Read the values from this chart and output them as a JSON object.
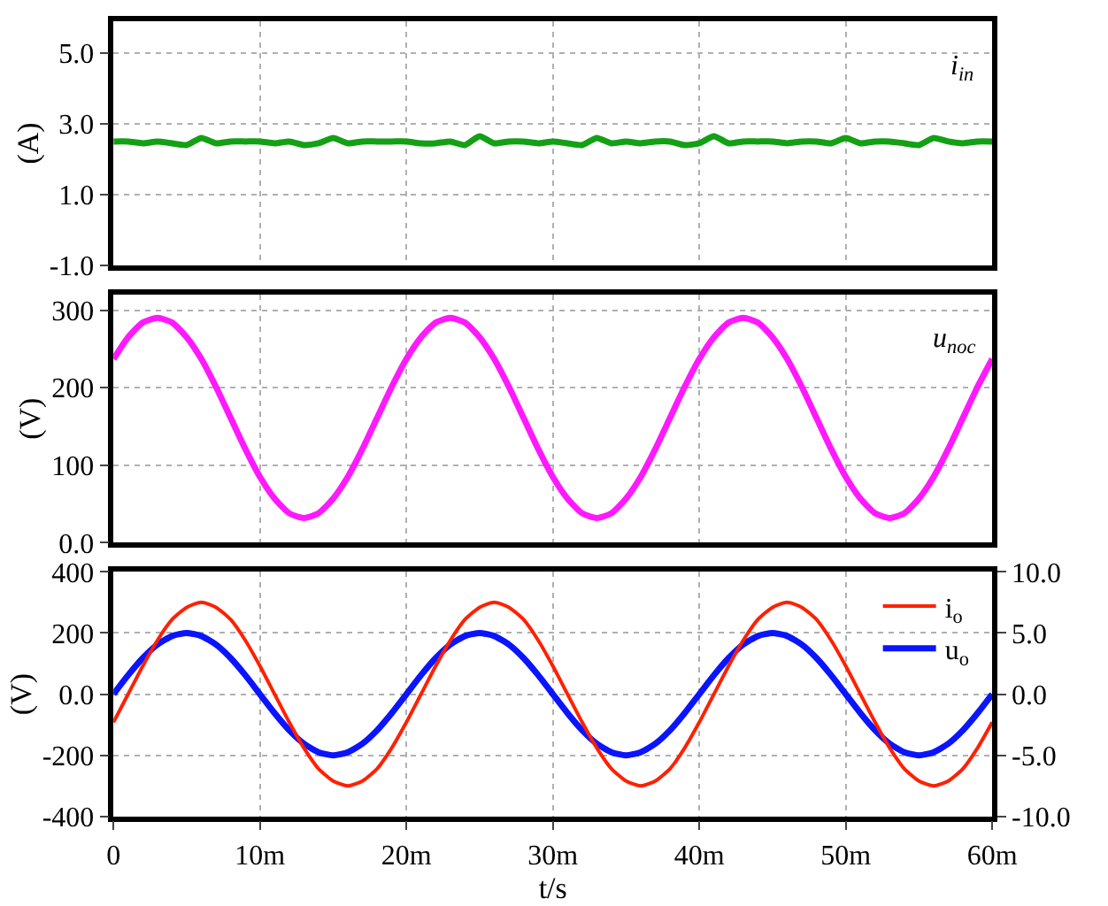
{
  "chart_data": [
    {
      "type": "line",
      "ylabel": "(A)",
      "annotations": [
        "i$_{in}$"
      ],
      "xlim": [
        0,
        60
      ],
      "xticks": [
        {
          "value": 10,
          "label": null
        },
        {
          "value": 20,
          "label": null
        },
        {
          "value": 30,
          "label": null
        },
        {
          "value": 40,
          "label": null
        },
        {
          "value": 50,
          "label": null
        }
      ],
      "ylim": [
        -1,
        5.9
      ],
      "yticks": [
        {
          "value": -1,
          "label": "-1.0"
        },
        {
          "value": 1,
          "label": "1.0"
        },
        {
          "value": 3,
          "label": "3.0"
        },
        {
          "value": 5,
          "label": "5.0"
        }
      ],
      "grid": true,
      "tick_labels": "y",
      "legend": false,
      "x": [
        0,
        1,
        2,
        3,
        4,
        5,
        6,
        7,
        8,
        9,
        10,
        11,
        12,
        13,
        14,
        15,
        16,
        17,
        18,
        19,
        20,
        21,
        22,
        23,
        24,
        25,
        26,
        27,
        28,
        29,
        30,
        31,
        32,
        33,
        34,
        35,
        36,
        37,
        38,
        39,
        40,
        41,
        42,
        43,
        44,
        45,
        46,
        47,
        48,
        49,
        50,
        51,
        52,
        53,
        54,
        55,
        56,
        57,
        58,
        59,
        60
      ],
      "series": [
        {
          "color": "#14a014",
          "values": [
            2.5,
            2.5,
            2.45,
            2.5,
            2.45,
            2.4,
            2.6,
            2.45,
            2.5,
            2.5,
            2.5,
            2.45,
            2.5,
            2.4,
            2.45,
            2.6,
            2.45,
            2.5,
            2.5,
            2.5,
            2.5,
            2.45,
            2.45,
            2.5,
            2.4,
            2.65,
            2.45,
            2.5,
            2.5,
            2.45,
            2.5,
            2.45,
            2.4,
            2.6,
            2.45,
            2.5,
            2.45,
            2.5,
            2.5,
            2.4,
            2.45,
            2.65,
            2.45,
            2.5,
            2.5,
            2.5,
            2.45,
            2.5,
            2.5,
            2.45,
            2.6,
            2.45,
            2.5,
            2.5,
            2.45,
            2.4,
            2.6,
            2.5,
            2.45,
            2.5,
            2.5
          ]
        }
      ]
    },
    {
      "type": "line",
      "ylabel": "(V)",
      "annotations": [
        "u$_{noc}$"
      ],
      "xlim": [
        0,
        60
      ],
      "xticks": [
        {
          "value": 10,
          "label": null
        },
        {
          "value": 20,
          "label": null
        },
        {
          "value": 30,
          "label": null
        },
        {
          "value": 40,
          "label": null
        },
        {
          "value": 50,
          "label": null
        }
      ],
      "ylim": [
        0,
        320
      ],
      "yticks": [
        {
          "value": 0,
          "label": "0.0"
        },
        100,
        200,
        300
      ],
      "grid": true,
      "tick_labels": "y",
      "legend": false,
      "x": [
        0,
        1,
        2,
        3,
        4,
        5,
        6,
        7,
        8,
        9,
        10,
        11,
        12,
        13,
        14,
        15,
        16,
        17,
        18,
        19,
        20,
        21,
        22,
        23,
        24,
        25,
        26,
        27,
        28,
        29,
        30,
        31,
        32,
        33,
        34,
        35,
        36,
        37,
        38,
        39,
        40,
        41,
        42,
        43,
        44,
        45,
        46,
        47,
        48,
        49,
        50,
        51,
        52,
        53,
        54,
        55,
        56,
        57,
        58,
        59,
        60
      ],
      "series": [
        {
          "color": "#ff19ff",
          "values": [
            237,
            265,
            284,
            290,
            284,
            265,
            237,
            201,
            161,
            121,
            85,
            57,
            38,
            32,
            38,
            57,
            85,
            121,
            161,
            201,
            237,
            265,
            284,
            290,
            284,
            265,
            237,
            201,
            161,
            121,
            85,
            57,
            38,
            32,
            38,
            57,
            85,
            121,
            161,
            201,
            237,
            265,
            284,
            290,
            284,
            265,
            237,
            201,
            161,
            121,
            85,
            57,
            38,
            32,
            38,
            57,
            85,
            121,
            161,
            201,
            237
          ]
        }
      ]
    },
    {
      "type": "line",
      "ylabel": "(V)",
      "xlabel": "t/s",
      "xlim": [
        0,
        60
      ],
      "xticks": [
        0,
        {
          "value": 10,
          "label": "10m"
        },
        {
          "value": 20,
          "label": "20m"
        },
        {
          "value": 30,
          "label": "30m"
        },
        {
          "value": 40,
          "label": "40m"
        },
        {
          "value": 50,
          "label": "50m"
        },
        {
          "value": 60,
          "label": "60m"
        }
      ],
      "ylim": [
        -400,
        400
      ],
      "yticks": [
        -400,
        -200,
        {
          "value": 0,
          "label": "0.0"
        },
        200,
        400
      ],
      "y2lim": [
        -10,
        10
      ],
      "y2ticks": [
        {
          "value": -10,
          "label": "-10.0"
        },
        {
          "value": -5,
          "label": "-5.0"
        },
        {
          "value": 0,
          "label": "0.0"
        },
        {
          "value": 5,
          "label": "5.0"
        },
        {
          "value": 10,
          "label": "10.0"
        }
      ],
      "grid": true,
      "legend": "top right",
      "x": [
        0,
        1,
        2,
        3,
        4,
        5,
        6,
        7,
        8,
        9,
        10,
        11,
        12,
        13,
        14,
        15,
        16,
        17,
        18,
        19,
        20,
        21,
        22,
        23,
        24,
        25,
        26,
        27,
        28,
        29,
        30,
        31,
        32,
        33,
        34,
        35,
        36,
        37,
        38,
        39,
        40,
        41,
        42,
        43,
        44,
        45,
        46,
        47,
        48,
        49,
        50,
        51,
        52,
        53,
        54,
        55,
        56,
        57,
        58,
        59,
        60
      ],
      "series": [
        {
          "name": "i$_{o}$",
          "color": "#ff2000",
          "axis": "y2",
          "values": [
            -2.3,
            0,
            2.3,
            4.4,
            6.1,
            7.1,
            7.5,
            7.1,
            6.1,
            4.4,
            2.3,
            0,
            -2.3,
            -4.4,
            -6.1,
            -7.1,
            -7.5,
            -7.1,
            -6.1,
            -4.4,
            -2.3,
            0,
            2.3,
            4.4,
            6.1,
            7.1,
            7.5,
            7.1,
            6.1,
            4.4,
            2.3,
            0,
            -2.3,
            -4.4,
            -6.1,
            -7.1,
            -7.5,
            -7.1,
            -6.1,
            -4.4,
            -2.3,
            0,
            2.3,
            4.4,
            6.1,
            7.1,
            7.5,
            7.1,
            6.1,
            4.4,
            2.3,
            0,
            -2.3,
            -4.4,
            -6.1,
            -7.1,
            -7.5,
            -7.1,
            -6.1,
            -4.4,
            -2.3
          ]
        },
        {
          "name": "u$_{o}$",
          "color": "#0a14ff",
          "values": [
            0,
            62,
            118,
            162,
            190,
            200,
            190,
            162,
            118,
            62,
            0,
            -62,
            -118,
            -162,
            -190,
            -200,
            -190,
            -162,
            -118,
            -62,
            0,
            62,
            118,
            162,
            190,
            200,
            190,
            162,
            118,
            62,
            0,
            -62,
            -118,
            -162,
            -190,
            -200,
            -190,
            -162,
            -118,
            -62,
            0,
            62,
            118,
            162,
            190,
            200,
            190,
            162,
            118,
            62,
            0,
            -62,
            -118,
            -162,
            -190,
            -200,
            -190,
            -162,
            -118,
            -62,
            0
          ]
        }
      ]
    }
  ]
}
